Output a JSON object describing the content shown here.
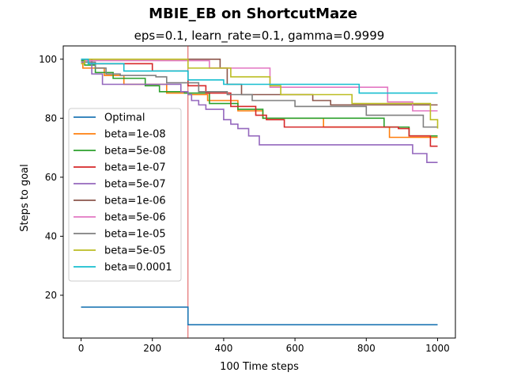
{
  "chart_data": {
    "type": "line",
    "suptitle": "MBIE_EB on ShortcutMaze",
    "title": "eps=0.1, learn_rate=0.1, gamma=0.9999",
    "xlabel": "100 Time steps",
    "ylabel": "Steps to goal",
    "xlim": [
      -50,
      1050
    ],
    "ylim": [
      5.5,
      104.5
    ],
    "xticks": [
      0,
      200,
      400,
      600,
      800,
      1000
    ],
    "yticks": [
      20,
      40,
      60,
      80,
      100
    ],
    "grid": false,
    "legend_position": "center-left",
    "vline": {
      "x": 300,
      "color": "#d62728"
    },
    "series": [
      {
        "name": "Optimal",
        "color": "#1f77b4",
        "x": [
          0,
          300,
          300,
          1000
        ],
        "y": [
          16,
          16,
          10,
          10
        ]
      },
      {
        "name": "beta=1e-08",
        "color": "#ff7f0e",
        "x": [
          0,
          5,
          65,
          120,
          240,
          300,
          355,
          440,
          510,
          680,
          865,
          1000
        ],
        "y": [
          99,
          97,
          94.5,
          91.5,
          88.5,
          88,
          86,
          82.5,
          80,
          77,
          73.5,
          73.5
        ]
      },
      {
        "name": "beta=5e-08",
        "color": "#2ca02c",
        "x": [
          0,
          10,
          40,
          90,
          180,
          220,
          290,
          360,
          440,
          510,
          850,
          920,
          1000
        ],
        "y": [
          99.5,
          98,
          95.5,
          93.5,
          91,
          89,
          88.5,
          85,
          83,
          80,
          77,
          74,
          74
        ]
      },
      {
        "name": "beta=1e-07",
        "color": "#d62728",
        "x": [
          0,
          30,
          200,
          300,
          350,
          420,
          490,
          520,
          570,
          890,
          920,
          980,
          1000
        ],
        "y": [
          100,
          98.5,
          96,
          91,
          88.5,
          84,
          81,
          79.5,
          77,
          76.5,
          74,
          70.5,
          70.5
        ]
      },
      {
        "name": "beta=5e-07",
        "color": "#9467bd",
        "x": [
          0,
          30,
          60,
          280,
          300,
          310,
          330,
          350,
          400,
          420,
          440,
          470,
          500,
          930,
          970,
          1000
        ],
        "y": [
          99,
          95,
          91.5,
          89,
          88,
          86,
          84.5,
          83,
          79.5,
          78,
          76.5,
          74,
          71,
          68,
          65,
          65
        ]
      },
      {
        "name": "beta=1e-06",
        "color": "#8c564b",
        "x": [
          0,
          10,
          40,
          390,
          410,
          450,
          650,
          700,
          1000
        ],
        "y": [
          100,
          100,
          100,
          97,
          91.5,
          88,
          86,
          84.5,
          84.5
        ]
      },
      {
        "name": "beta=5e-06",
        "color": "#e377c2",
        "x": [
          0,
          10,
          60,
          300,
          360,
          530,
          860,
          930,
          1000
        ],
        "y": [
          100,
          99.5,
          99.5,
          99.5,
          97,
          90.5,
          85.5,
          82.5,
          82.5
        ]
      },
      {
        "name": "beta=1e-05",
        "color": "#7f7f7f",
        "x": [
          0,
          10,
          40,
          70,
          110,
          210,
          240,
          330,
          410,
          480,
          600,
          800,
          960,
          1000
        ],
        "y": [
          100,
          99,
          97,
          95,
          94.5,
          94,
          92,
          89,
          88,
          86,
          84,
          81,
          77,
          77
        ]
      },
      {
        "name": "beta=5e-05",
        "color": "#bcbd22",
        "x": [
          0,
          10,
          40,
          100,
          300,
          420,
          530,
          560,
          680,
          760,
          980,
          1000
        ],
        "y": [
          98.5,
          100,
          100,
          100,
          97,
          94,
          91,
          88,
          88,
          85,
          79.5,
          76.5
        ]
      },
      {
        "name": "beta=0.0001",
        "color": "#17becf",
        "x": [
          0,
          10,
          20,
          100,
          120,
          300,
          400,
          750,
          780,
          1000
        ],
        "y": [
          100,
          100,
          98.5,
          98.5,
          96,
          93,
          91.5,
          91.5,
          88.5,
          88.5
        ]
      }
    ]
  }
}
